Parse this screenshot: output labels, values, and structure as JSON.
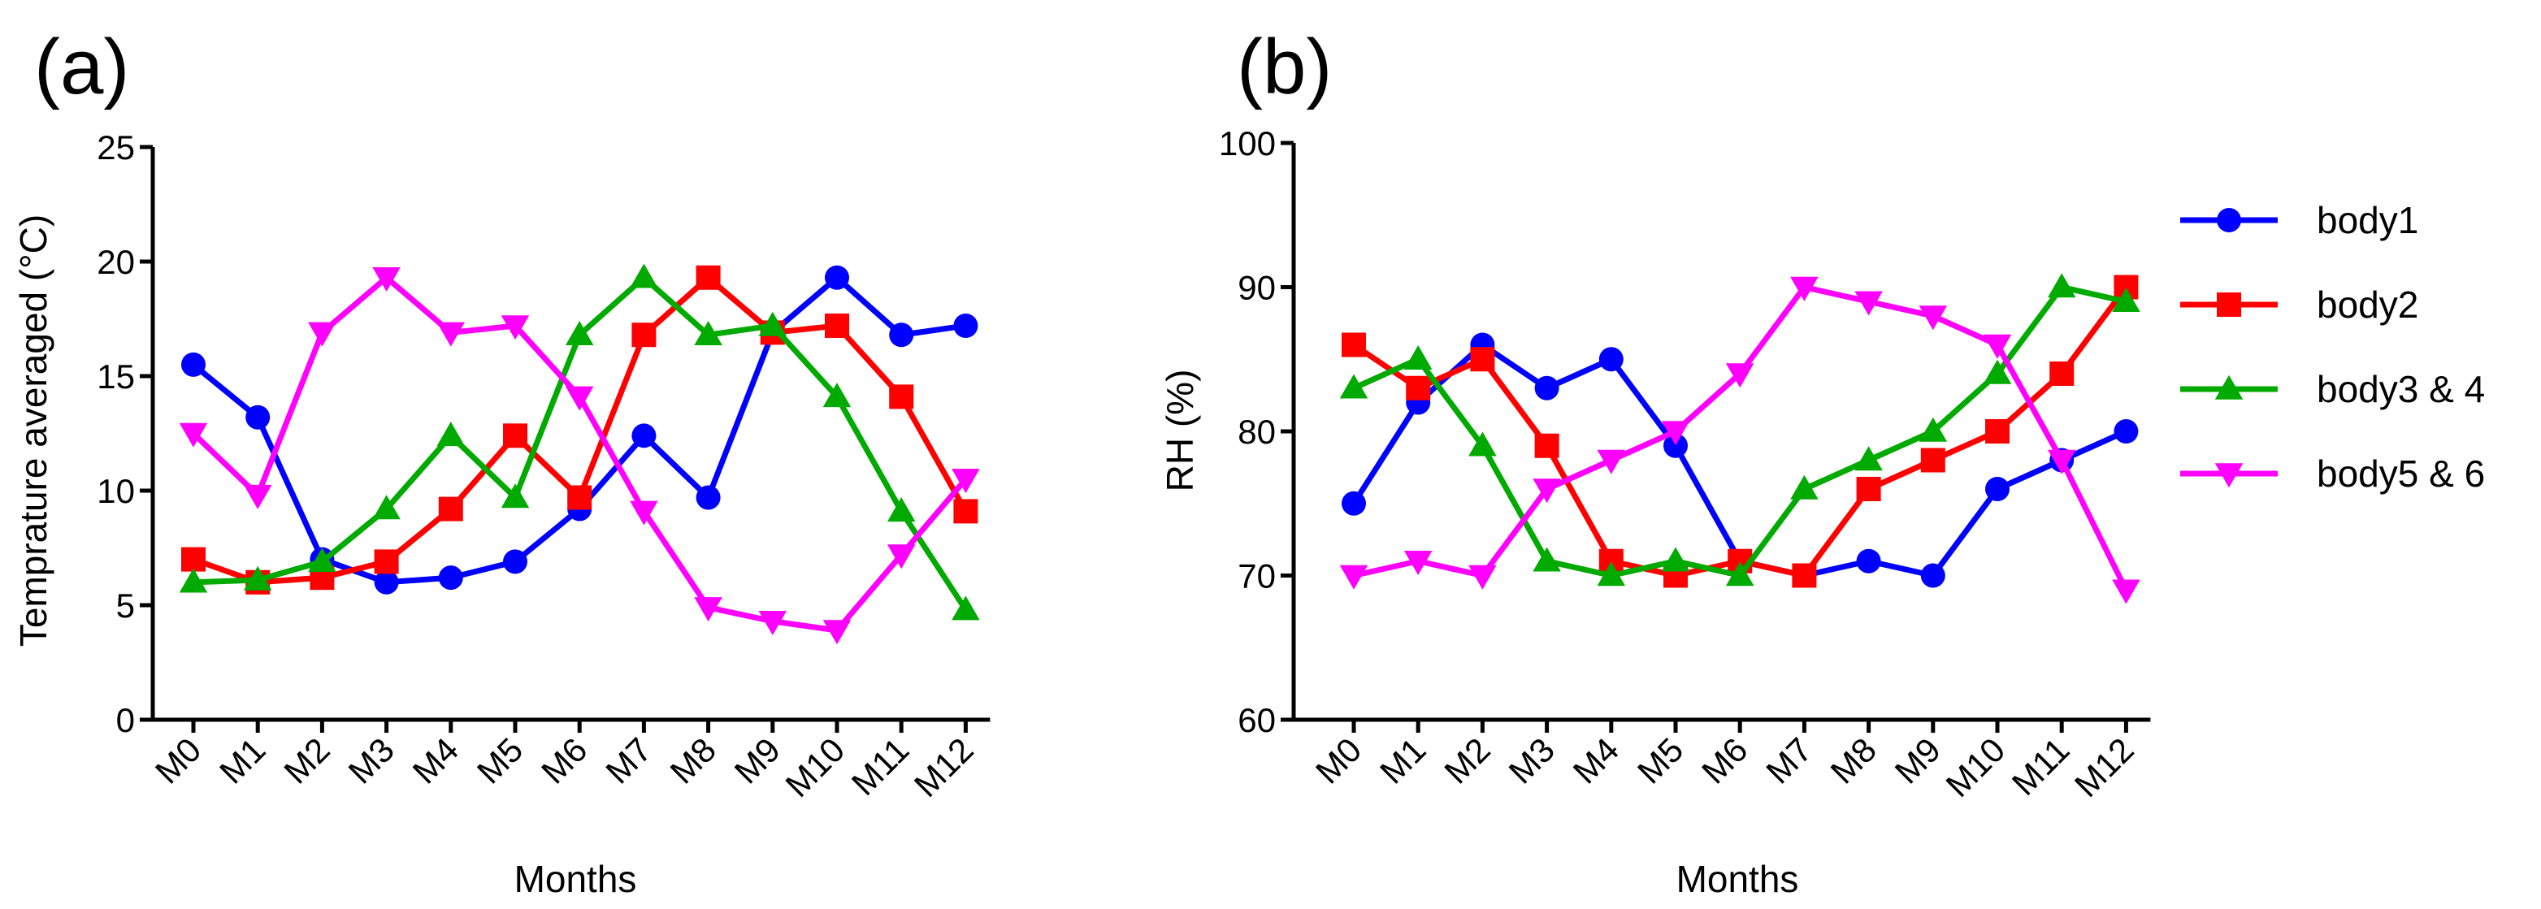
{
  "chart_data": [
    {
      "type": "line",
      "panel_label": "(a)",
      "title": "",
      "xlabel": "Months",
      "ylabel": "Temprature averaged (°C)",
      "categories": [
        "M0",
        "M1",
        "M2",
        "M3",
        "M4",
        "M5",
        "M6",
        "M7",
        "M8",
        "M9",
        "M10",
        "M11",
        "M12"
      ],
      "ylim": [
        0,
        25
      ],
      "yticks": [
        "0",
        "5",
        "10",
        "15",
        "20",
        "25"
      ],
      "grid": false,
      "series": [
        {
          "name": "body1",
          "color": "#0000ff",
          "marker": "circle",
          "values": [
            15.5,
            13.2,
            7.0,
            6.0,
            6.2,
            6.9,
            9.2,
            12.4,
            9.7,
            16.9,
            19.3,
            16.8,
            17.2
          ]
        },
        {
          "name": "body2",
          "color": "#ff0000",
          "marker": "square",
          "values": [
            7.0,
            6.0,
            6.2,
            6.9,
            9.2,
            12.4,
            9.7,
            16.8,
            19.3,
            16.9,
            17.2,
            14.1,
            9.1
          ]
        },
        {
          "name": "body3 & 4",
          "color": "#00aa00",
          "marker": "triangle-up",
          "values": [
            6.0,
            6.1,
            6.9,
            9.2,
            12.4,
            9.7,
            16.8,
            19.3,
            16.8,
            17.2,
            14.1,
            9.1,
            4.8
          ]
        },
        {
          "name": "body5 & 6",
          "color": "#ff00ff",
          "marker": "triangle-down",
          "values": [
            12.5,
            9.8,
            16.9,
            19.3,
            16.9,
            17.2,
            14.1,
            9.1,
            4.9,
            4.3,
            3.9,
            7.2,
            10.5
          ]
        }
      ]
    },
    {
      "type": "line",
      "panel_label": "(b)",
      "title": "",
      "xlabel": "Months",
      "ylabel": "RH (%)",
      "categories": [
        "M0",
        "M1",
        "M2",
        "M3",
        "M4",
        "M5",
        "M6",
        "M7",
        "M8",
        "M9",
        "M10",
        "M11",
        "M12"
      ],
      "ylim": [
        60,
        100
      ],
      "yticks": [
        "60",
        "70",
        "80",
        "90",
        "100"
      ],
      "grid": false,
      "legend_position": "right",
      "series": [
        {
          "name": "body1",
          "color": "#0000ff",
          "marker": "circle",
          "values": [
            75,
            82,
            86,
            83,
            85,
            79,
            71,
            70,
            71,
            70,
            76,
            78,
            80
          ]
        },
        {
          "name": "body2",
          "color": "#ff0000",
          "marker": "square",
          "values": [
            86,
            83,
            85,
            79,
            71,
            70,
            71,
            70,
            76,
            78,
            80,
            84,
            90
          ]
        },
        {
          "name": "body3 & 4",
          "color": "#00aa00",
          "marker": "triangle-up",
          "values": [
            83,
            85,
            79,
            71,
            70,
            71,
            70,
            76,
            78,
            80,
            84,
            90,
            89
          ]
        },
        {
          "name": "body5 & 6",
          "color": "#ff00ff",
          "marker": "triangle-down",
          "values": [
            70,
            71,
            70,
            76,
            78,
            80,
            84,
            90,
            89,
            88,
            86,
            78,
            69
          ]
        }
      ]
    }
  ]
}
